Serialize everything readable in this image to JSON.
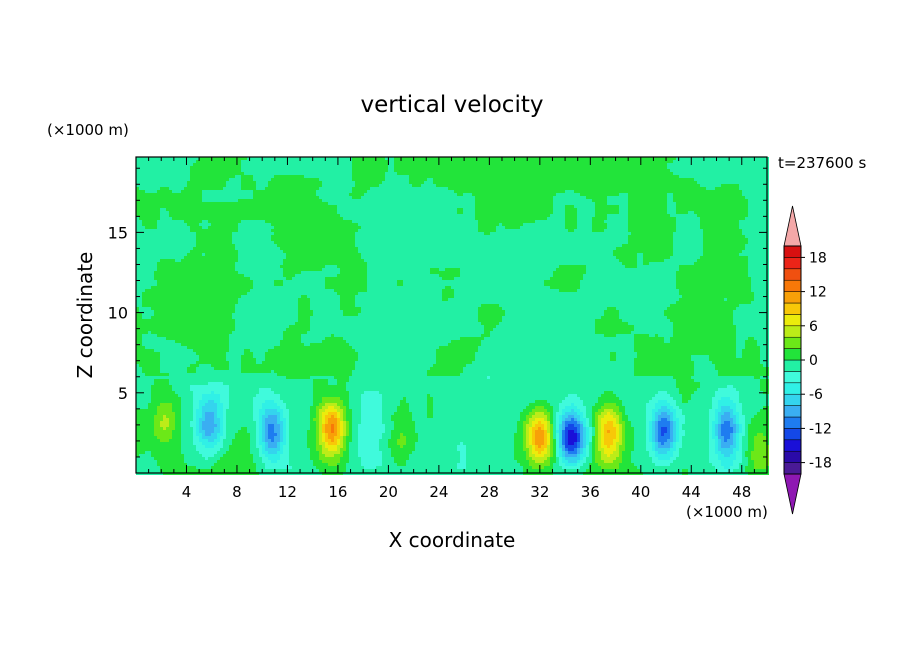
{
  "chart_data": {
    "type": "heatmap",
    "title": "vertical velocity",
    "xlabel": "X coordinate",
    "ylabel": "Z coordinate",
    "x_unit": "(×1000 m)",
    "y_unit": "(×1000 m)",
    "time_label": "t=237600 s",
    "xlim": [
      0,
      50
    ],
    "ylim": [
      0,
      19.7
    ],
    "x_ticks": [
      4,
      8,
      12,
      16,
      20,
      24,
      28,
      32,
      36,
      40,
      44,
      48
    ],
    "y_ticks": [
      5,
      10,
      15
    ],
    "grid": false,
    "colorbar": {
      "levels": [
        -20,
        -18,
        -16,
        -14,
        -12,
        -10,
        -8,
        -6,
        -4,
        -2,
        0,
        2,
        4,
        6,
        8,
        10,
        12,
        14,
        16,
        18,
        20
      ],
      "tick_labels": [
        -18,
        -12,
        -6,
        0,
        6,
        12,
        18
      ],
      "colors": [
        "#4a1a96",
        "#2a0aa8",
        "#1a10d8",
        "#1448e8",
        "#1e7cf0",
        "#3aaef2",
        "#34d4ee",
        "#30f0e6",
        "#40fadc",
        "#22f0a4",
        "#22e43a",
        "#6ce818",
        "#bcec18",
        "#ecec0c",
        "#f8c808",
        "#f8a008",
        "#f87808",
        "#f05010",
        "#ec2418",
        "#d81010"
      ],
      "under_color": "#8e18b2",
      "over_color": "#f4a8a8"
    },
    "features": [
      {
        "x": 2.5,
        "z": 3.2,
        "w": -2.5
      },
      {
        "x": 2.4,
        "z": 3.3,
        "w": 8
      },
      {
        "x": 5.8,
        "z": 3.0,
        "w": -9
      },
      {
        "x": 10.8,
        "z": 2.6,
        "w": -11
      },
      {
        "x": 15.5,
        "z": 2.8,
        "w": 12
      },
      {
        "x": 18.5,
        "z": 2.5,
        "w": -2
      },
      {
        "x": 21.0,
        "z": 1.8,
        "w": 3
      },
      {
        "x": 26.0,
        "z": 1.5,
        "w": -1.5
      },
      {
        "x": 32.0,
        "z": 2.2,
        "w": 11
      },
      {
        "x": 34.5,
        "z": 2.2,
        "w": -14
      },
      {
        "x": 37.5,
        "z": 2.5,
        "w": 12
      },
      {
        "x": 41.8,
        "z": 2.6,
        "w": -12
      },
      {
        "x": 46.8,
        "z": 2.6,
        "w": -11
      },
      {
        "x": 49.5,
        "z": 1.5,
        "w": 3
      }
    ]
  }
}
